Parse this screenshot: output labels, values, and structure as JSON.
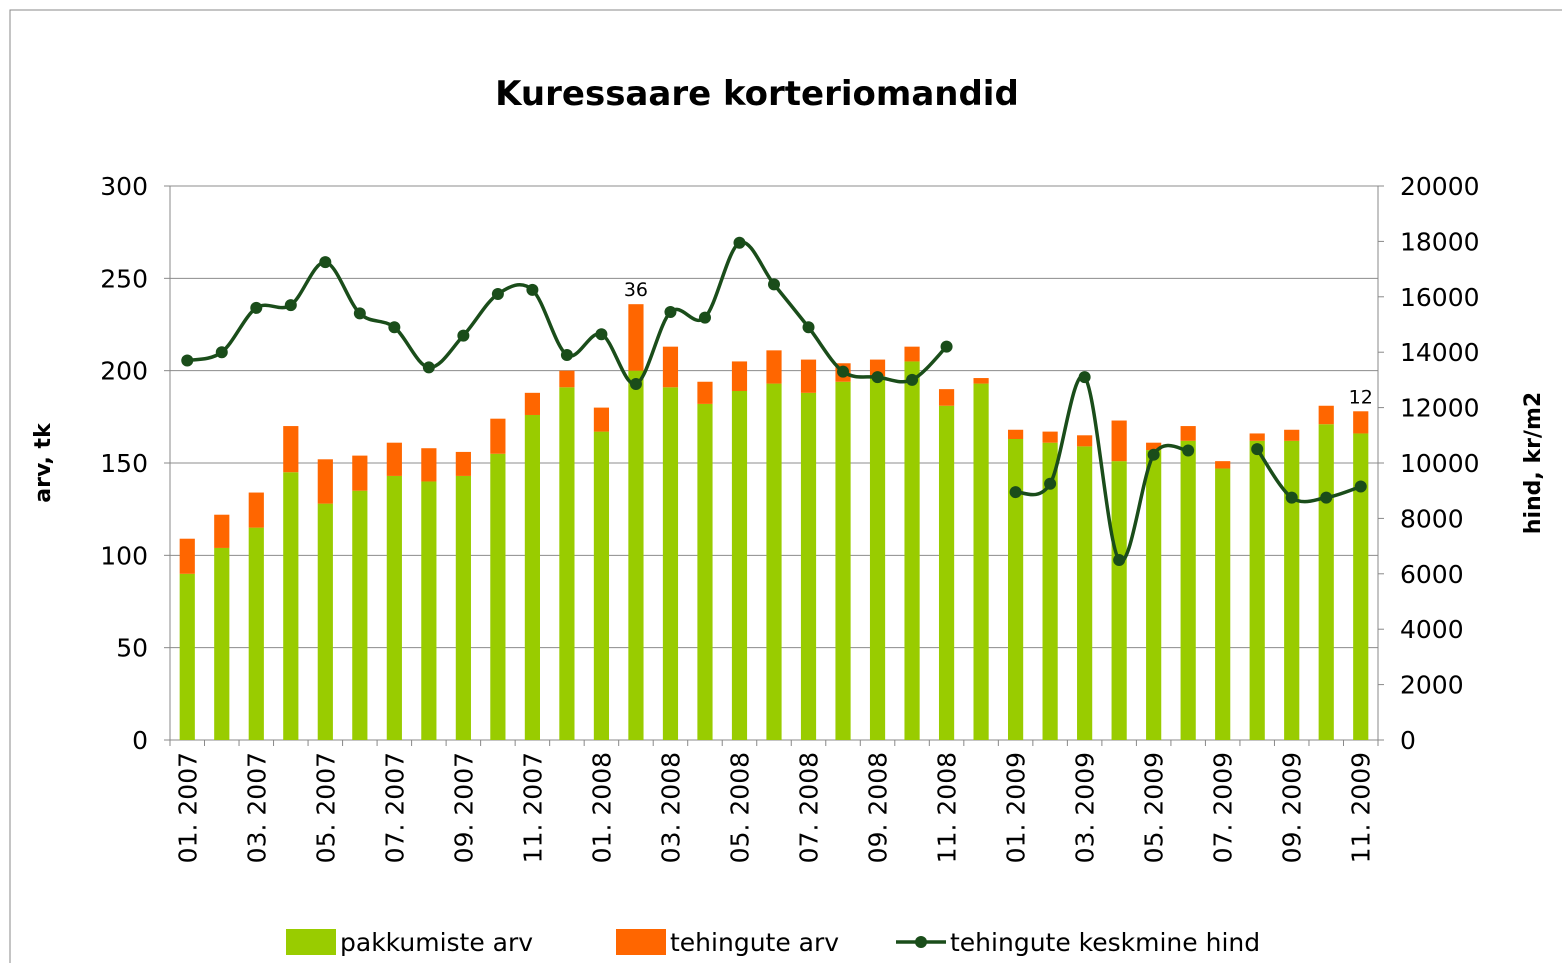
{
  "chart_data": {
    "type": "bar_line",
    "title": "Kuressaare korteriomandid",
    "y_label": "arv, tk",
    "y2_label": "hind, kr/m2",
    "categories": [
      "01. 2007",
      null,
      "03. 2007",
      null,
      "05. 2007",
      null,
      "07. 2007",
      null,
      "09. 2007",
      null,
      "11. 2007",
      null,
      "01. 2008",
      null,
      "03. 2008",
      null,
      "05. 2008",
      null,
      "07. 2008",
      null,
      "09. 2008",
      null,
      "11. 2008",
      null,
      "01. 2009",
      null,
      "03. 2009",
      null,
      "05. 2009",
      null,
      "07. 2009",
      null,
      "09. 2009",
      null,
      "11. 2009"
    ],
    "series": [
      {
        "name": "pakkumiste arv",
        "type": "bar",
        "stacked": true,
        "color": "#99cc00",
        "values": [
          90,
          104,
          115,
          145,
          128,
          135,
          143,
          140,
          143,
          155,
          176,
          191,
          167,
          200,
          191,
          182,
          189,
          193,
          188,
          194,
          197,
          205,
          181,
          193,
          163,
          161,
          159,
          151,
          157,
          162,
          147,
          162,
          162,
          171,
          166
        ]
      },
      {
        "name": "tehingute arv",
        "type": "bar",
        "stacked": true,
        "color": "#ff6600",
        "values": [
          19,
          18,
          19,
          25,
          24,
          19,
          18,
          18,
          13,
          19,
          12,
          9,
          13,
          36,
          22,
          12,
          16,
          18,
          18,
          10,
          9,
          8,
          9,
          3,
          5,
          6,
          6,
          22,
          4,
          8,
          4,
          4,
          6,
          10,
          12
        ],
        "value_labels": [
          null,
          null,
          null,
          null,
          null,
          null,
          null,
          null,
          null,
          null,
          null,
          null,
          null,
          "36",
          null,
          null,
          null,
          null,
          null,
          null,
          null,
          null,
          null,
          null,
          null,
          null,
          null,
          null,
          null,
          null,
          null,
          null,
          null,
          null,
          "12"
        ]
      },
      {
        "name": "tehingute keskmine hind",
        "type": "line",
        "axis": "y2",
        "color": "#1a4d1a",
        "values": [
          13700,
          14000,
          15600,
          15700,
          17250,
          15400,
          14900,
          13450,
          14600,
          16100,
          16250,
          13900,
          14650,
          12850,
          15450,
          15250,
          17950,
          16450,
          14900,
          13300,
          13100,
          13000,
          14200,
          null,
          8950,
          9250,
          13100,
          6500,
          10300,
          10450,
          null,
          10500,
          8750,
          8750,
          9150
        ]
      }
    ],
    "ylim": [
      0,
      300
    ],
    "yticks": [
      0,
      50,
      100,
      150,
      200,
      250,
      300
    ],
    "y2lim": [
      0,
      20000
    ],
    "y2ticks": [
      0,
      2000,
      4000,
      6000,
      8000,
      10000,
      12000,
      14000,
      16000,
      18000,
      20000
    ],
    "grid": true,
    "legend": "bottom"
  }
}
